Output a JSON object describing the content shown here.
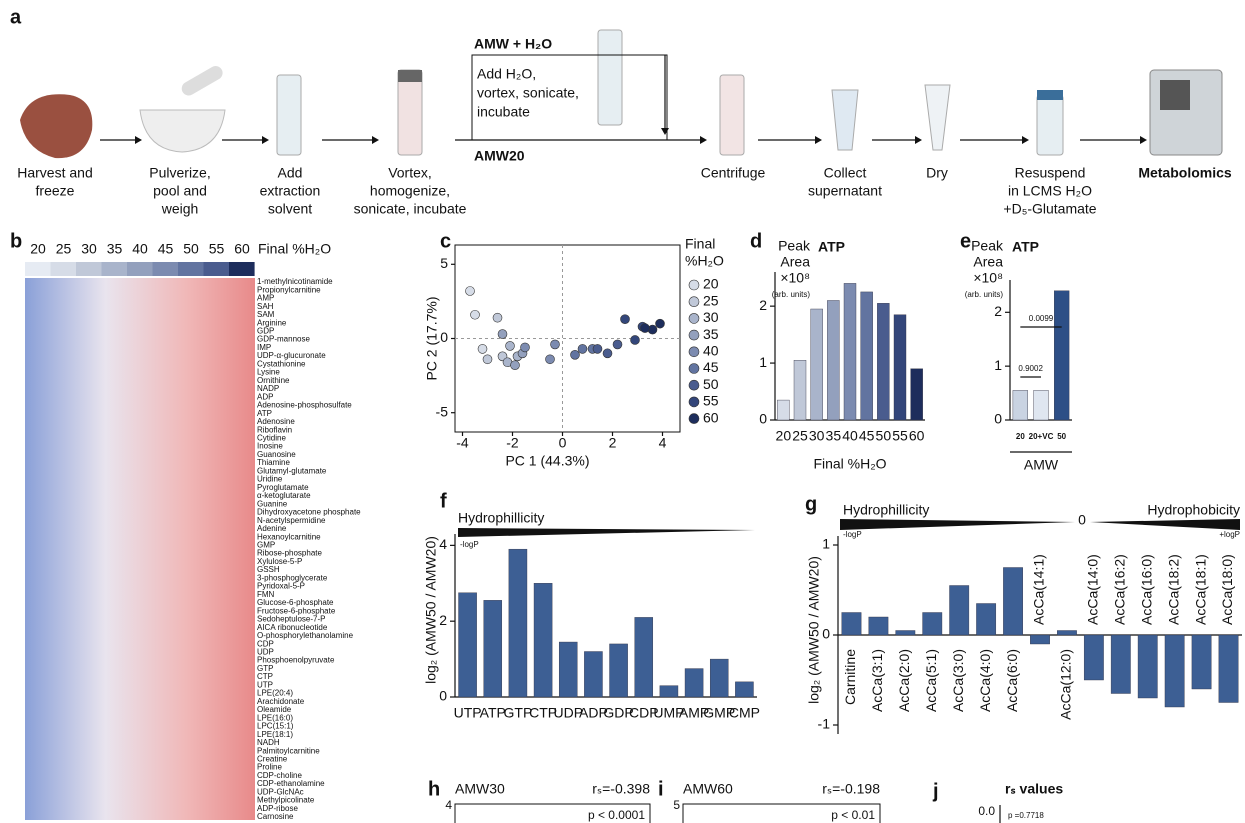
{
  "figure": {
    "panel_a": {
      "label": "a",
      "steps": [
        [
          "Harvest and",
          "freeze"
        ],
        [
          "Pulverize,",
          "pool and",
          "weigh"
        ],
        [
          "Add",
          "extraction",
          "solvent"
        ],
        [
          "Vortex,",
          "homogenize,",
          "sonicate, incubate"
        ],
        [
          "Centrifuge"
        ],
        [
          "Collect",
          "supernatant"
        ],
        [
          "Dry"
        ],
        [
          "Resuspend",
          "in LCMS H₂O",
          "+D₅-Glutamate"
        ],
        [
          "Metabolomics"
        ]
      ],
      "branch_title": "AMW + H₂O",
      "branch_text": [
        "Add H₂O,",
        "vortex, sonicate,",
        "incubate"
      ],
      "main_label": "AMW20"
    },
    "panel_b": {
      "label": "b",
      "header": "Final %H₂O",
      "columns": [
        20,
        25,
        30,
        35,
        40,
        45,
        50,
        55,
        60
      ],
      "rows": [
        "1-methylnicotinamide",
        "Propionylcarnitine",
        "AMP",
        "SAH",
        "SAM",
        "Arginine",
        "GDP",
        "GDP-mannose",
        "IMP",
        "UDP-α-glucuronate",
        "Cystathionine",
        "Lysine",
        "Ornithine",
        "NADP",
        "ADP",
        "Adenosine-phosphosulfate",
        "ATP",
        "Adenosine",
        "Riboflavin",
        "Cytidine",
        "Inosine",
        "Guanosine",
        "Thiamine",
        "Glutamyl-glutamate",
        "Uridine",
        "Pyroglutamate",
        "α-ketoglutarate",
        "Guanine",
        "Dihydroxyacetone phosphate",
        "N-acetylspermidine",
        "Adenine",
        "Hexanoylcarnitine",
        "GMP",
        "Ribose-phosphate",
        "Xylulose-5-P",
        "GSSH",
        "3-phosphoglycerate",
        "Pyridoxal-5-P",
        "FMN",
        "Glucose-6-phosphate",
        "Fructose-6-phosphate",
        "Sedoheptulose-7-P",
        "AICA ribonucleotide",
        "O-phosphorylethanolamine",
        "CDP",
        "UDP",
        "Phosphoenolpyruvate",
        "GTP",
        "CTP",
        "UTP",
        "LPE(20:4)",
        "Arachidonate",
        "Oleamide",
        "LPE(16:0)",
        "LPC(15:1)",
        "LPE(18:1)",
        "NADH",
        "Palmitoylcarnitine",
        "Creatine",
        "Proline",
        "CDP-choline",
        "CDP-ethanolamine",
        "UDP-GlcNAc",
        "Methylpicolinate",
        "ADP-ribose",
        "Carnosine"
      ]
    },
    "panel_labels": {
      "c": "c",
      "d": "d",
      "e": "e",
      "f": "f",
      "g": "g",
      "h": "h",
      "i": "i",
      "j": "j"
    },
    "panel_h": {
      "title": "AMW30",
      "stat": "rₛ=-0.398",
      "tick": "4",
      "p": "p < 0.0001"
    },
    "panel_i": {
      "title": "AMW60",
      "stat": "rₛ=-0.198",
      "tick": "5",
      "p": "p < 0.01"
    },
    "panel_j": {
      "title": "rₛ values",
      "tick": "0.0",
      "p": "p =0.7718"
    }
  },
  "chart_data": [
    {
      "type": "scatter",
      "legend_title": [
        "Final",
        "%H₂O"
      ],
      "x_label": "PC 1 (44.3%)",
      "y_label": "PC 2 (17.7%)",
      "xlim": [
        -4.3,
        4.7
      ],
      "ylim": [
        -6.3,
        6.3
      ],
      "xticks": [
        -4,
        -2,
        0,
        2,
        4
      ],
      "yticks": [
        -5,
        0,
        5
      ],
      "series": [
        {
          "name": "20",
          "color": "#d6dce7",
          "x": [
            -3.7,
            -3.5,
            -3.2
          ],
          "y": [
            3.2,
            1.6,
            -0.7
          ]
        },
        {
          "name": "25",
          "color": "#c0c8d8",
          "x": [
            -2.6,
            -2.4,
            -3.0
          ],
          "y": [
            1.4,
            -1.2,
            -1.4
          ]
        },
        {
          "name": "30",
          "color": "#a9b4cb",
          "x": [
            -2.1,
            -1.8,
            -2.2
          ],
          "y": [
            -0.5,
            -1.2,
            -1.6
          ]
        },
        {
          "name": "35",
          "color": "#93a0bd",
          "x": [
            -1.6,
            -1.9,
            -2.4
          ],
          "y": [
            -1.0,
            -1.8,
            0.3
          ]
        },
        {
          "name": "40",
          "color": "#7c8bb0",
          "x": [
            -0.3,
            -0.5,
            -1.5
          ],
          "y": [
            -0.4,
            -1.4,
            -0.6
          ]
        },
        {
          "name": "45",
          "color": "#6274a0",
          "x": [
            0.8,
            1.2,
            0.5
          ],
          "y": [
            -0.7,
            -0.7,
            -1.1
          ]
        },
        {
          "name": "50",
          "color": "#4a5c8e",
          "x": [
            2.2,
            1.8,
            1.4
          ],
          "y": [
            -0.4,
            -1.0,
            -0.7
          ]
        },
        {
          "name": "55",
          "color": "#33467a",
          "x": [
            2.5,
            3.2,
            2.9
          ],
          "y": [
            1.3,
            0.8,
            -0.1
          ]
        },
        {
          "name": "60",
          "color": "#1d2d5c",
          "x": [
            3.6,
            3.9,
            3.3
          ],
          "y": [
            0.6,
            1.0,
            0.7
          ]
        }
      ]
    },
    {
      "type": "bar",
      "title": "ATP",
      "y_label": [
        "Peak",
        "Area",
        "×10⁸",
        "(arb. units)"
      ],
      "x_label": "Final %H₂O",
      "categories": [
        "20",
        "25",
        "30",
        "35",
        "40",
        "45",
        "50",
        "55",
        "60"
      ],
      "values": [
        0.35,
        1.05,
        1.95,
        2.1,
        2.4,
        2.25,
        2.05,
        1.85,
        0.9
      ],
      "colors": [
        "#d6dce7",
        "#c0c8d8",
        "#a9b4cb",
        "#93a0bd",
        "#7c8bb0",
        "#6274a0",
        "#4a5c8e",
        "#33467a",
        "#1d2d5c"
      ],
      "ylim": [
        0,
        2.6
      ],
      "yticks": [
        0,
        1,
        2
      ]
    },
    {
      "type": "bar",
      "title": "ATP",
      "y_label": [
        "Peak",
        "Area",
        "×10⁸",
        "(arb. units)"
      ],
      "group_label": "AMW",
      "categories": [
        "20",
        "20+VC",
        "50"
      ],
      "values": [
        0.55,
        0.55,
        2.4
      ],
      "colors": [
        "#c9d3e2",
        "#dfe6f0",
        "#2d4f86"
      ],
      "annotations": [
        "0.9002",
        "0.0099"
      ],
      "ylim": [
        0,
        2.6
      ],
      "yticks": [
        0,
        1,
        2
      ]
    },
    {
      "type": "bar",
      "y_label": "log₂ (AMW50 / AMW20)",
      "gradient_label": "Hydrophillicity",
      "gradient_sub": "-logP",
      "categories": [
        "UTP",
        "ATP",
        "GTP",
        "CTP",
        "UDP",
        "ADP",
        "GDP",
        "CDP",
        "UMP",
        "AMP",
        "GMP",
        "CMP"
      ],
      "values": [
        2.75,
        2.55,
        3.9,
        3.0,
        1.45,
        1.2,
        1.4,
        2.1,
        0.3,
        0.75,
        1.0,
        0.4
      ],
      "color": "#3d5f94",
      "ylim": [
        0,
        4.3
      ],
      "yticks": [
        0,
        2,
        4
      ]
    },
    {
      "type": "bar",
      "y_label": "log₂ (AMW50 / AMW20)",
      "gradient_left": "Hydrophillicity",
      "gradient_mid": "0",
      "gradient_right": "Hydrophobicity",
      "left_sub": "-logP",
      "right_sub": "+logP",
      "categories": [
        "Carnitine",
        "AcCa(3:1)",
        "AcCa(2:0)",
        "AcCa(5:1)",
        "AcCa(3:0)",
        "AcCa(4:0)",
        "AcCa(6:0)",
        "AcCa(14:1)",
        "AcCa(12:0)",
        "AcCa(14:0)",
        "AcCa(16:2)",
        "AcCa(16:0)",
        "AcCa(18:2)",
        "AcCa(18:1)",
        "AcCa(18:0)"
      ],
      "values": [
        0.25,
        0.2,
        0.05,
        0.25,
        0.55,
        0.35,
        0.75,
        -0.1,
        0.05,
        -0.5,
        -0.65,
        -0.7,
        -0.8,
        -0.6,
        -0.75
      ],
      "color": "#3d5f94",
      "ylim": [
        -1.1,
        1.1
      ],
      "yticks": [
        -1,
        0,
        1
      ]
    }
  ]
}
